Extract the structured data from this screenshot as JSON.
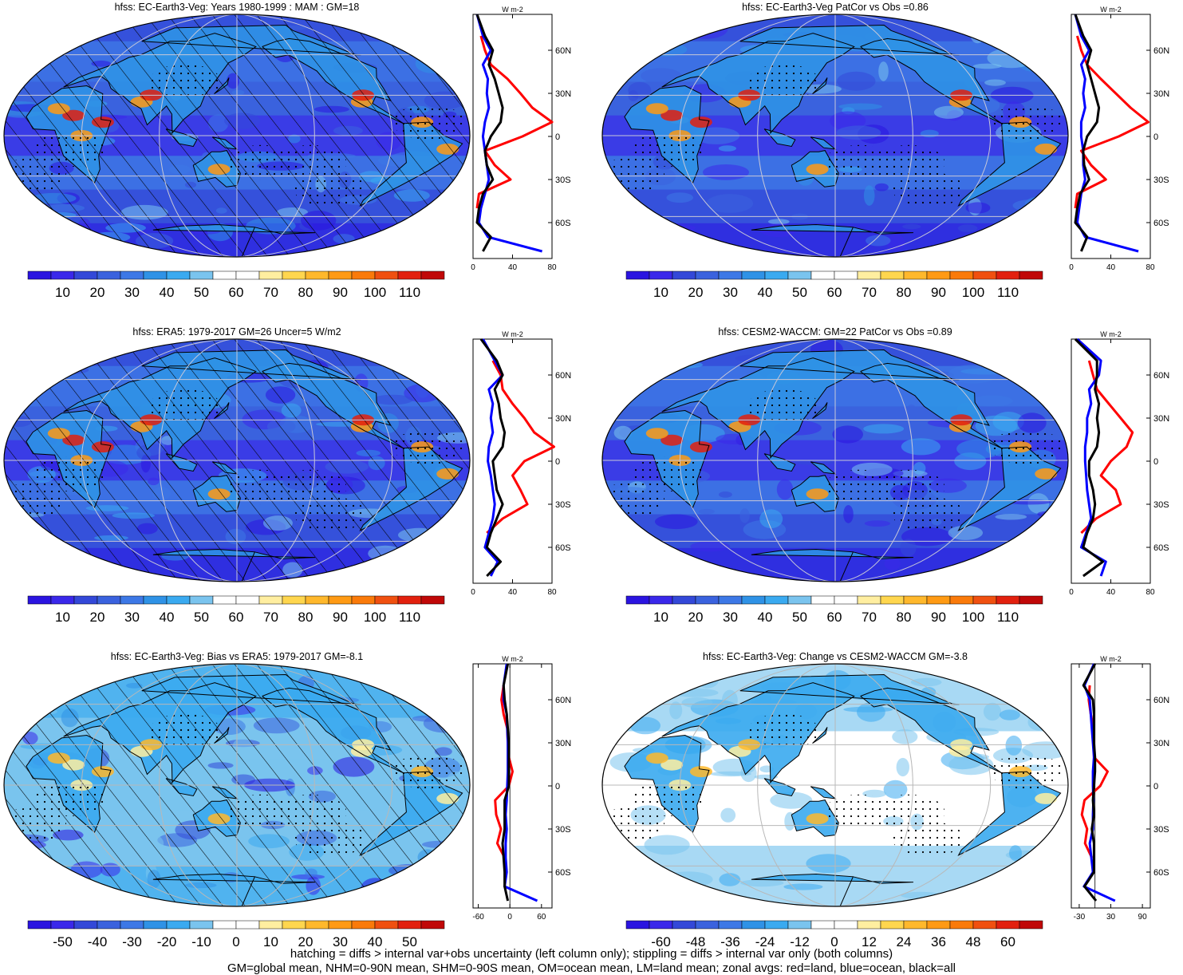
{
  "panels": [
    {
      "title": "hfss: EC-Earth3-Veg: Years 1980-1999 : MAM : GM=18",
      "field": "absolute",
      "hatching": true,
      "stippling": true,
      "colorbar_labels": [
        "10",
        "20",
        "30",
        "40",
        "50",
        "60",
        "70",
        "80",
        "90",
        "100",
        "110"
      ],
      "zonal_xticks": [
        "0",
        "40",
        "80"
      ],
      "zonal_xlim": [
        0,
        80
      ],
      "zonal_unit": "W m-2"
    },
    {
      "title": "hfss: EC-Earth3-Veg PatCor vs Obs =0.86",
      "field": "absolute",
      "hatching": false,
      "stippling": true,
      "colorbar_labels": [
        "10",
        "20",
        "30",
        "40",
        "50",
        "60",
        "70",
        "80",
        "90",
        "100",
        "110"
      ],
      "zonal_xticks": [
        "0",
        "40",
        "80"
      ],
      "zonal_xlim": [
        0,
        80
      ],
      "zonal_unit": "W m-2"
    },
    {
      "title": "hfss: ERA5: 1979-2017 GM=26 Uncer=5 W/m2",
      "field": "absolute",
      "hatching": true,
      "stippling": true,
      "colorbar_labels": [
        "10",
        "20",
        "30",
        "40",
        "50",
        "60",
        "70",
        "80",
        "90",
        "100",
        "110"
      ],
      "zonal_xticks": [
        "0",
        "40",
        "80"
      ],
      "zonal_xlim": [
        0,
        80
      ],
      "zonal_unit": "W m-2"
    },
    {
      "title": "hfss: CESM2-WACCM: GM=22 PatCor vs Obs =0.89",
      "field": "absolute",
      "hatching": false,
      "stippling": true,
      "colorbar_labels": [
        "10",
        "20",
        "30",
        "40",
        "50",
        "60",
        "70",
        "80",
        "90",
        "100",
        "110"
      ],
      "zonal_xticks": [
        "0",
        "40",
        "80"
      ],
      "zonal_xlim": [
        0,
        80
      ],
      "zonal_unit": "W m-2"
    },
    {
      "title": "hfss: EC-Earth3-Veg: Bias vs ERA5: 1979-2017 GM=-8.1",
      "field": "bias",
      "hatching": true,
      "stippling": true,
      "colorbar_labels": [
        "-50",
        "-40",
        "-30",
        "-20",
        "-10",
        "0",
        "10",
        "20",
        "30",
        "40",
        "50"
      ],
      "zonal_xticks": [
        "-60",
        "0",
        "60"
      ],
      "zonal_xlim": [
        -70,
        80
      ],
      "zonal_unit": "W m-2"
    },
    {
      "title": "hfss: EC-Earth3-Veg: Change vs CESM2-WACCM GM=-3.8",
      "field": "change",
      "hatching": false,
      "stippling": true,
      "colorbar_labels": [
        "-60",
        "-48",
        "-36",
        "-24",
        "-12",
        "0",
        "12",
        "24",
        "36",
        "48",
        "60"
      ],
      "zonal_xticks": [
        "-30",
        "30",
        "90"
      ],
      "zonal_xlim": [
        -45,
        105
      ],
      "zonal_unit": "W m-2"
    }
  ],
  "lat_ticks": [
    "60N",
    "30N",
    "0",
    "30S",
    "60S"
  ],
  "colors": {
    "absolute": [
      "#2a14e0",
      "#3a28ea",
      "#3348d8",
      "#3a62de",
      "#3d78e6",
      "#2f92e6",
      "#3aaaf0",
      "#7ac4ee",
      "#ffffff",
      "#ffffff",
      "#ffeea0",
      "#ffd64e",
      "#ffb82c",
      "#ff9a14",
      "#fa7a0a",
      "#f05010",
      "#e2200e",
      "#c00808"
    ],
    "diverging": [
      "#2a14e0",
      "#3a28ea",
      "#3348d8",
      "#3a62de",
      "#3d78e6",
      "#2f92e6",
      "#3aaaf0",
      "#7ac4ee",
      "#ffffff",
      "#ffffff",
      "#ffeea0",
      "#ffd64e",
      "#ffb82c",
      "#ff9a14",
      "#fa7a0a",
      "#f05010",
      "#e2200e",
      "#c00808"
    ],
    "land": "#ff0000",
    "ocean": "#0000ff",
    "all": "#000000"
  },
  "chart_data": [
    {
      "type": "heatmap",
      "title": "hfss: EC-Earth3-Veg: Years 1980-1999 : MAM : GM=18",
      "colorbar_labels": [
        "10",
        "20",
        "30",
        "40",
        "50",
        "60",
        "70",
        "80",
        "90",
        "100",
        "110"
      ],
      "zonal_mean": {
        "lat": [
          85,
          70,
          60,
          50,
          40,
          30,
          20,
          10,
          0,
          -10,
          -20,
          -30,
          -40,
          -50,
          -60,
          -70,
          -80
        ],
        "land": [
          null,
          8,
          12,
          18,
          35,
          48,
          60,
          80,
          50,
          12,
          22,
          38,
          6,
          4,
          null,
          18,
          null
        ],
        "ocean": [
          4,
          10,
          18,
          10,
          15,
          14,
          16,
          12,
          10,
          12,
          14,
          16,
          12,
          8,
          6,
          15,
          70
        ],
        "all": [
          4,
          12,
          20,
          16,
          22,
          26,
          30,
          28,
          18,
          12,
          14,
          20,
          10,
          6,
          4,
          18,
          10
        ]
      }
    },
    {
      "type": "heatmap",
      "title": "hfss: EC-Earth3-Veg PatCor vs Obs =0.86",
      "colorbar_labels": [
        "10",
        "20",
        "30",
        "40",
        "50",
        "60",
        "70",
        "80",
        "90",
        "100",
        "110"
      ],
      "zonal_mean": {
        "lat": [
          85,
          70,
          60,
          50,
          40,
          30,
          20,
          10,
          0,
          -10,
          -20,
          -30,
          -40,
          -50,
          -60,
          -70,
          -80
        ],
        "land": [
          null,
          6,
          10,
          16,
          30,
          45,
          60,
          78,
          48,
          10,
          20,
          35,
          6,
          4,
          null,
          16,
          null
        ],
        "ocean": [
          4,
          10,
          18,
          10,
          14,
          12,
          14,
          10,
          10,
          12,
          12,
          14,
          10,
          8,
          6,
          14,
          68
        ],
        "all": [
          4,
          12,
          20,
          16,
          20,
          24,
          28,
          26,
          16,
          12,
          13,
          18,
          9,
          6,
          4,
          16,
          10
        ]
      }
    },
    {
      "type": "heatmap",
      "title": "hfss: ERA5: 1979-2017 GM=26 Uncer=5 W/m2",
      "colorbar_labels": [
        "10",
        "20",
        "30",
        "40",
        "50",
        "60",
        "70",
        "80",
        "90",
        "100",
        "110"
      ],
      "zonal_mean": {
        "lat": [
          85,
          70,
          60,
          50,
          40,
          30,
          20,
          10,
          0,
          -10,
          -20,
          -30,
          -40,
          -50,
          -60,
          -70,
          -80
        ],
        "land": [
          null,
          20,
          28,
          30,
          40,
          52,
          62,
          82,
          52,
          40,
          48,
          55,
          30,
          14,
          null,
          10,
          null
        ],
        "ocean": [
          10,
          22,
          30,
          16,
          20,
          18,
          20,
          16,
          15,
          18,
          20,
          22,
          20,
          16,
          12,
          25,
          18
        ],
        "all": [
          8,
          24,
          30,
          22,
          26,
          28,
          32,
          30,
          20,
          22,
          24,
          30,
          24,
          18,
          14,
          28,
          14
        ]
      }
    },
    {
      "type": "heatmap",
      "title": "hfss: CESM2-WACCM: GM=22 PatCor vs Obs =0.89",
      "colorbar_labels": [
        "10",
        "20",
        "30",
        "40",
        "50",
        "60",
        "70",
        "80",
        "90",
        "100",
        "110"
      ],
      "zonal_mean": {
        "lat": [
          85,
          70,
          60,
          50,
          40,
          30,
          20,
          10,
          0,
          -10,
          -20,
          -30,
          -40,
          -50,
          -60,
          -70,
          -80
        ],
        "land": [
          null,
          18,
          22,
          26,
          38,
          50,
          62,
          56,
          40,
          30,
          45,
          50,
          25,
          10,
          null,
          8,
          null
        ],
        "ocean": [
          6,
          30,
          28,
          18,
          20,
          16,
          16,
          14,
          14,
          15,
          16,
          18,
          20,
          15,
          10,
          35,
          30
        ],
        "all": [
          4,
          26,
          26,
          24,
          28,
          26,
          28,
          26,
          18,
          18,
          22,
          24,
          22,
          16,
          12,
          32,
          12
        ]
      }
    },
    {
      "type": "heatmap",
      "title": "hfss: EC-Earth3-Veg: Bias vs ERA5: 1979-2017 GM=-8.1",
      "colorbar_labels": [
        "-50",
        "-40",
        "-30",
        "-20",
        "-10",
        "0",
        "10",
        "20",
        "30",
        "40",
        "50"
      ],
      "zonal_mean": {
        "lat": [
          85,
          70,
          60,
          50,
          40,
          30,
          20,
          10,
          0,
          -10,
          -20,
          -30,
          -40,
          -50,
          -60,
          -70,
          -80
        ],
        "land": [
          null,
          -12,
          -16,
          -12,
          -5,
          -4,
          -2,
          5,
          -2,
          -28,
          -26,
          -17,
          -24,
          -10,
          null,
          20,
          null
        ],
        "ocean": [
          -6,
          -12,
          -12,
          -6,
          -5,
          -4,
          -4,
          -4,
          -5,
          -6,
          -8,
          -6,
          -8,
          -8,
          -6,
          -10,
          52
        ],
        "all": [
          -4,
          -12,
          -10,
          -6,
          -4,
          -2,
          -2,
          -2,
          -2,
          -10,
          -10,
          -10,
          -14,
          -12,
          -10,
          -10,
          -4
        ]
      }
    },
    {
      "type": "heatmap",
      "title": "hfss: EC-Earth3-Veg: Change vs CESM2-WACCM GM=-3.8",
      "colorbar_labels": [
        "-60",
        "-48",
        "-36",
        "-24",
        "-12",
        "0",
        "12",
        "24",
        "36",
        "48",
        "60"
      ],
      "zonal_mean": {
        "lat": [
          85,
          70,
          60,
          50,
          40,
          30,
          20,
          10,
          0,
          -10,
          -20,
          -30,
          -40,
          -50,
          -60,
          -70,
          -80
        ],
        "land": [
          null,
          -10,
          -12,
          -8,
          -3,
          -2,
          -2,
          24,
          10,
          -20,
          -25,
          -15,
          -19,
          -6,
          null,
          8,
          null
        ],
        "ocean": [
          -2,
          -20,
          -10,
          -8,
          -6,
          -4,
          -2,
          -4,
          -4,
          -3,
          -4,
          -4,
          -10,
          -7,
          -4,
          -21,
          38
        ],
        "all": [
          0,
          -22,
          -4,
          -2,
          -2,
          -2,
          0,
          0,
          -2,
          -4,
          -2,
          -6,
          -2,
          -2,
          -2,
          -20,
          2
        ]
      }
    }
  ],
  "footer": {
    "line1": "hatching = diffs > internal var+obs uncertainty (left column only); stippling = diffs > internal var only (both columns)",
    "line2": "GM=global mean, NHM=0-90N mean, SHM=0-90S mean, OM=ocean mean, LM=land mean; zonal avgs: red=land, blue=ocean, black=all"
  }
}
